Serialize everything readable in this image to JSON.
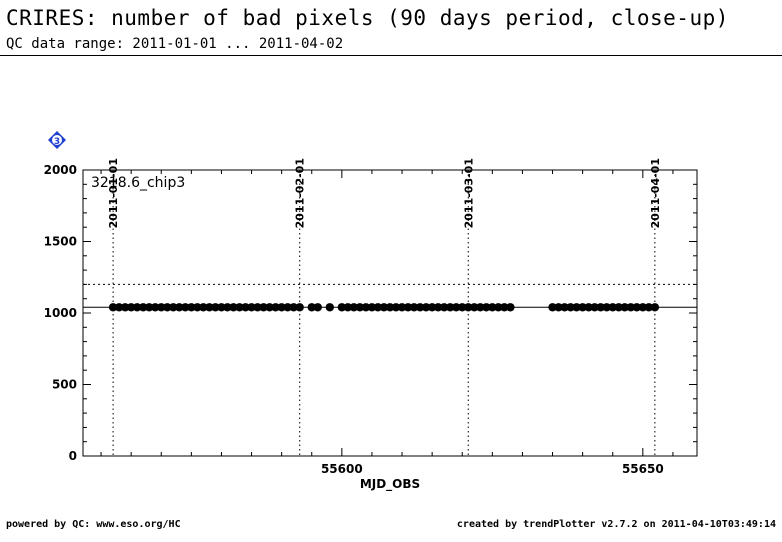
{
  "header": {
    "title": "CRIRES: number of bad pixels (90 days period, close-up)",
    "subtitle": "QC data range: 2011-01-01 ... 2011-04-02"
  },
  "footer": {
    "left": "powered by QC: www.eso.org/HC",
    "right": "created by trendPlotter v2.7.2 on 2011-04-10T03:49:14"
  },
  "marker_badge": "3",
  "colors": {
    "badge": "#1f3fd0",
    "points": "#000000"
  },
  "chart_data": {
    "type": "scatter",
    "xlabel": "MJD_OBS",
    "ylabel": "",
    "xlim": [
      55557,
      55659
    ],
    "ylim": [
      0,
      2000
    ],
    "x_ticks": [
      55600,
      55650
    ],
    "y_ticks": [
      0,
      500,
      1000,
      1500,
      2000
    ],
    "legend_label": "3218.6_chip3",
    "date_markers": [
      {
        "label": "2011-01-01",
        "x": 55562
      },
      {
        "label": "2011-02-01",
        "x": 55593
      },
      {
        "label": "2011-03-01",
        "x": 55621
      },
      {
        "label": "2011-04-01",
        "x": 55652
      }
    ],
    "reference_line": 1040,
    "threshold_lines": [
      1200
    ],
    "series": [
      {
        "x": [
          55562,
          55563,
          55564,
          55565,
          55566,
          55567,
          55568,
          55569,
          55570,
          55571,
          55572,
          55573,
          55574,
          55575,
          55576,
          55577,
          55578,
          55579,
          55580,
          55581,
          55582,
          55583,
          55584,
          55585,
          55586,
          55587,
          55588,
          55589,
          55590,
          55591,
          55592,
          55593,
          55595,
          55596,
          55598,
          55600,
          55601,
          55602,
          55603,
          55604,
          55605,
          55606,
          55607,
          55608,
          55609,
          55610,
          55611,
          55612,
          55613,
          55614,
          55615,
          55616,
          55617,
          55618,
          55619,
          55620,
          55621,
          55622,
          55623,
          55624,
          55625,
          55626,
          55627,
          55628,
          55635,
          55636,
          55637,
          55638,
          55639,
          55640,
          55641,
          55642,
          55643,
          55644,
          55645,
          55646,
          55647,
          55648,
          55649,
          55650,
          55651,
          55652
        ],
        "y": [
          1040,
          1040,
          1040,
          1040,
          1040,
          1040,
          1040,
          1040,
          1040,
          1040,
          1040,
          1040,
          1040,
          1040,
          1040,
          1040,
          1040,
          1040,
          1040,
          1040,
          1040,
          1040,
          1040,
          1040,
          1040,
          1040,
          1040,
          1040,
          1040,
          1040,
          1040,
          1040,
          1040,
          1040,
          1040,
          1040,
          1040,
          1040,
          1040,
          1040,
          1040,
          1040,
          1040,
          1040,
          1040,
          1040,
          1040,
          1040,
          1040,
          1040,
          1040,
          1040,
          1040,
          1040,
          1040,
          1040,
          1040,
          1040,
          1040,
          1040,
          1040,
          1040,
          1040,
          1040,
          1040,
          1040,
          1040,
          1040,
          1040,
          1040,
          1040,
          1040,
          1040,
          1040,
          1040,
          1040,
          1040,
          1040,
          1040,
          1040,
          1040,
          1040
        ]
      }
    ]
  }
}
